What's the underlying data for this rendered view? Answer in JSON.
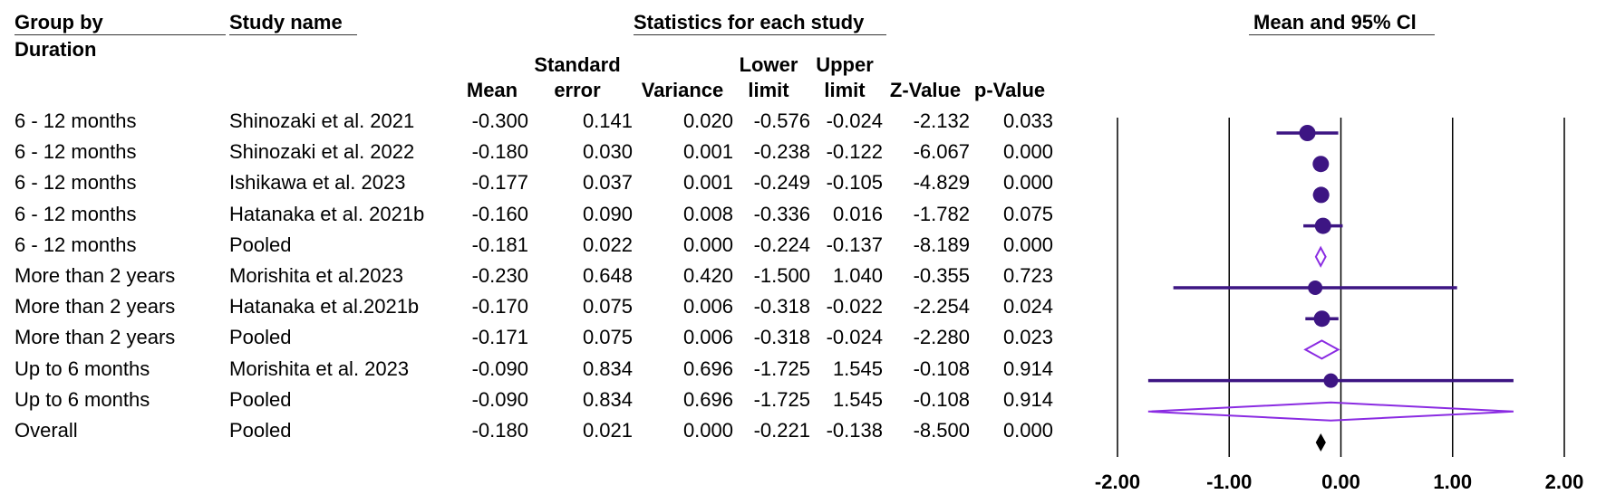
{
  "headers": {
    "group_by": "Group by",
    "duration": "Duration",
    "study_name": "Study name",
    "statistics": "Statistics for each study",
    "plot_title": "Mean and 95% Cl"
  },
  "columns": {
    "mean": "Mean",
    "se_1": "Standard",
    "se_2": "error",
    "variance": "Variance",
    "lower_1": "Lower",
    "lower_2": "limit",
    "upper_1": "Upper",
    "upper_2": "limit",
    "z": "Z-Value",
    "p": "p-Value"
  },
  "rows": [
    {
      "group": "6 - 12 months",
      "study": "Shinozaki et al. 2021",
      "mean": "-0.300",
      "se": "0.141",
      "variance": "0.020",
      "lower": "-0.576",
      "upper": "-0.024",
      "z": "-2.132",
      "p": "0.033"
    },
    {
      "group": "6 - 12 months",
      "study": "Shinozaki et al. 2022",
      "mean": "-0.180",
      "se": "0.030",
      "variance": "0.001",
      "lower": "-0.238",
      "upper": "-0.122",
      "z": "-6.067",
      "p": "0.000"
    },
    {
      "group": "6 - 12 months",
      "study": "Ishikawa et al. 2023",
      "mean": "-0.177",
      "se": "0.037",
      "variance": "0.001",
      "lower": "-0.249",
      "upper": "-0.105",
      "z": "-4.829",
      "p": "0.000"
    },
    {
      "group": "6 - 12 months",
      "study": "Hatanaka et al. 2021b",
      "mean": "-0.160",
      "se": "0.090",
      "variance": "0.008",
      "lower": "-0.336",
      "upper": "0.016",
      "z": "-1.782",
      "p": "0.075"
    },
    {
      "group": "6 - 12 months",
      "study": "Pooled",
      "mean": "-0.181",
      "se": "0.022",
      "variance": "0.000",
      "lower": "-0.224",
      "upper": "-0.137",
      "z": "-8.189",
      "p": "0.000"
    },
    {
      "group": "More than 2 years",
      "study": "Morishita et al.2023",
      "mean": "-0.230",
      "se": "0.648",
      "variance": "0.420",
      "lower": "-1.500",
      "upper": "1.040",
      "z": "-0.355",
      "p": "0.723"
    },
    {
      "group": "More than 2 years",
      "study": "Hatanaka et al.2021b",
      "mean": "-0.170",
      "se": "0.075",
      "variance": "0.006",
      "lower": "-0.318",
      "upper": "-0.022",
      "z": "-2.254",
      "p": "0.024"
    },
    {
      "group": "More than 2 years",
      "study": "Pooled",
      "mean": "-0.171",
      "se": "0.075",
      "variance": "0.006",
      "lower": "-0.318",
      "upper": "-0.024",
      "z": "-2.280",
      "p": "0.023"
    },
    {
      "group": "Up to 6 months",
      "study": "Morishita et al. 2023",
      "mean": "-0.090",
      "se": "0.834",
      "variance": "0.696",
      "lower": "-1.725",
      "upper": "1.545",
      "z": "-0.108",
      "p": "0.914"
    },
    {
      "group": "Up to 6 months",
      "study": "Pooled",
      "mean": "-0.090",
      "se": "0.834",
      "variance": "0.696",
      "lower": "-1.725",
      "upper": "1.545",
      "z": "-0.108",
      "p": "0.914"
    },
    {
      "group": "Overall",
      "study": "Pooled",
      "mean": "-0.180",
      "se": "0.021",
      "variance": "0.000",
      "lower": "-0.221",
      "upper": "-0.138",
      "z": "-8.500",
      "p": "0.000"
    }
  ],
  "chart_data": {
    "type": "forest",
    "title": "Mean and 95% Cl",
    "xlim": [
      -2,
      2
    ],
    "ticks": [
      "-2.00",
      "-1.00",
      "0.00",
      "1.00",
      "2.00"
    ],
    "tick_values": [
      -2,
      -1,
      0,
      1,
      2
    ],
    "points": [
      {
        "mean": -0.3,
        "lower": -0.576,
        "upper": -0.024,
        "marker": "circle"
      },
      {
        "mean": -0.18,
        "lower": -0.238,
        "upper": -0.122,
        "marker": "circle"
      },
      {
        "mean": -0.177,
        "lower": -0.249,
        "upper": -0.105,
        "marker": "circle"
      },
      {
        "mean": -0.16,
        "lower": -0.336,
        "upper": 0.016,
        "marker": "circle"
      },
      {
        "mean": -0.181,
        "lower": -0.224,
        "upper": -0.137,
        "marker": "diamond-open"
      },
      {
        "mean": -0.23,
        "lower": -1.5,
        "upper": 1.04,
        "marker": "circle"
      },
      {
        "mean": -0.17,
        "lower": -0.318,
        "upper": -0.022,
        "marker": "circle"
      },
      {
        "mean": -0.171,
        "lower": -0.318,
        "upper": -0.024,
        "marker": "diamond-open"
      },
      {
        "mean": -0.09,
        "lower": -1.725,
        "upper": 1.545,
        "marker": "circle"
      },
      {
        "mean": -0.09,
        "lower": -1.725,
        "upper": 1.545,
        "marker": "diamond-open"
      },
      {
        "mean": -0.18,
        "lower": -0.221,
        "upper": -0.138,
        "marker": "diamond-filled"
      }
    ],
    "colors": {
      "study": "#3d1583",
      "pooled": "#8a2be2",
      "overall": "#000000",
      "axis": "#000000"
    }
  }
}
